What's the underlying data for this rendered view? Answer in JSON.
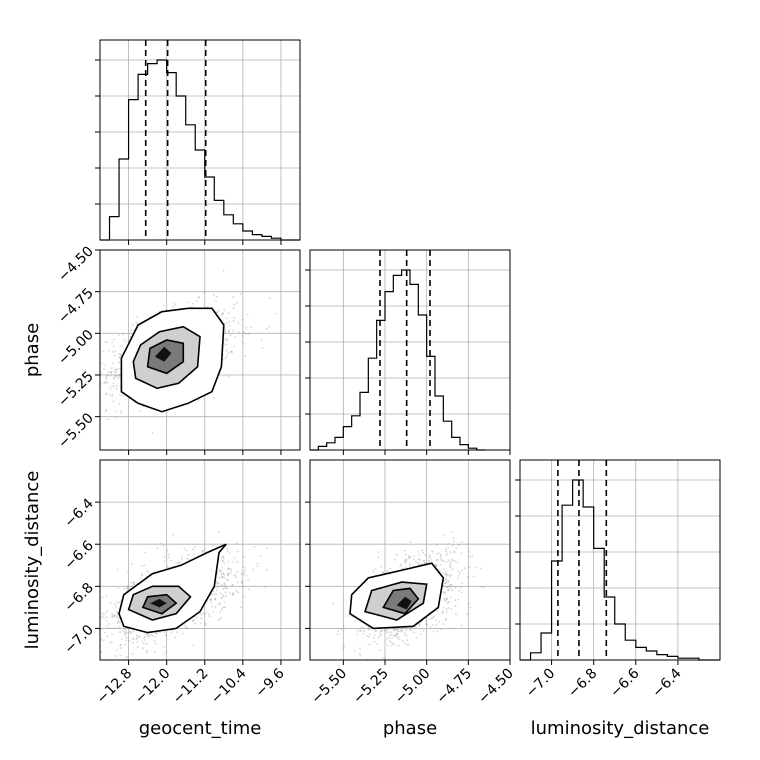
{
  "chart_data": {
    "type": "corner",
    "parameters": [
      "geocent_time",
      "phase",
      "luminosity_distance"
    ],
    "axes": {
      "geocent_time": {
        "range": [
          -13.4,
          -9.2
        ],
        "ticks": [
          -12.8,
          -12.0,
          -11.2,
          -10.4,
          -9.6
        ],
        "tick_labels": [
          "−12.8",
          "−12.0",
          "−11.2",
          "−10.4",
          "−9.6"
        ],
        "label": "geocent_time"
      },
      "phase": {
        "range": [
          -5.7,
          -4.5
        ],
        "ticks": [
          -5.5,
          -5.25,
          -5.0,
          -4.75,
          -4.5
        ],
        "tick_labels": [
          "−5.50",
          "−5.25",
          "−5.00",
          "−4.75",
          "−4.50"
        ],
        "label": "phase"
      },
      "luminosity_distance": {
        "range": [
          -7.15,
          -6.2
        ],
        "ticks": [
          -7.0,
          -6.8,
          -6.6,
          -6.4
        ],
        "tick_labels": [
          "−7.0",
          "−6.8",
          "−6.6",
          "−6.4"
        ],
        "label": "luminosity_distance"
      }
    },
    "marginals": [
      {
        "parameter": "geocent_time",
        "bin_edges": [
          -13.4,
          -13.2,
          -13.0,
          -12.8,
          -12.6,
          -12.4,
          -12.2,
          -12.0,
          -11.8,
          -11.6,
          -11.4,
          -11.2,
          -11.0,
          -10.8,
          -10.6,
          -10.4,
          -10.2,
          -10.0,
          -9.8,
          -9.6,
          -9.4,
          -9.2
        ],
        "counts": [
          0,
          0.13,
          0.45,
          0.78,
          0.92,
          0.98,
          1.0,
          0.93,
          0.8,
          0.64,
          0.5,
          0.35,
          0.22,
          0.14,
          0.09,
          0.05,
          0.03,
          0.02,
          0.01,
          0,
          0
        ],
        "quantiles": [
          -12.44,
          -11.98,
          -11.18
        ]
      },
      {
        "parameter": "phase",
        "bin_edges": [
          -5.7,
          -5.65,
          -5.6,
          -5.55,
          -5.5,
          -5.45,
          -5.4,
          -5.35,
          -5.3,
          -5.25,
          -5.2,
          -5.15,
          -5.1,
          -5.05,
          -5.0,
          -4.95,
          -4.9,
          -4.85,
          -4.8,
          -4.75,
          -4.7,
          -4.65
        ],
        "counts": [
          0,
          0.02,
          0.04,
          0.07,
          0.13,
          0.19,
          0.32,
          0.51,
          0.72,
          0.88,
          0.97,
          1.0,
          0.92,
          0.75,
          0.52,
          0.3,
          0.16,
          0.07,
          0.03,
          0.01,
          0
        ],
        "quantiles": [
          -5.28,
          -5.12,
          -4.98
        ]
      },
      {
        "parameter": "luminosity_distance",
        "bin_edges": [
          -7.15,
          -7.1,
          -7.05,
          -7.0,
          -6.95,
          -6.9,
          -6.85,
          -6.8,
          -6.75,
          -6.7,
          -6.65,
          -6.6,
          -6.55,
          -6.5,
          -6.45,
          -6.4,
          -6.35,
          -6.3,
          -6.25,
          -6.2
        ],
        "counts": [
          0,
          0.04,
          0.15,
          0.55,
          0.86,
          1.0,
          0.85,
          0.62,
          0.35,
          0.2,
          0.11,
          0.07,
          0.05,
          0.03,
          0.02,
          0.01,
          0.01,
          0,
          0
        ],
        "quantiles": [
          -6.97,
          -6.87,
          -6.74
        ]
      }
    ],
    "pairs": [
      {
        "x": "geocent_time",
        "y": "phase",
        "mean": [
          -11.98,
          -5.12
        ],
        "sd": [
          0.62,
          0.13
        ],
        "corr": 0.45,
        "contours": [
          [
            [
              -12.95,
              -5.35
            ],
            [
              -12.6,
              -5.42
            ],
            [
              -12.1,
              -5.47
            ],
            [
              -11.55,
              -5.42
            ],
            [
              -11.05,
              -5.35
            ],
            [
              -10.85,
              -5.2
            ],
            [
              -10.8,
              -4.95
            ],
            [
              -11.05,
              -4.85
            ],
            [
              -11.55,
              -4.85
            ],
            [
              -12.1,
              -4.87
            ],
            [
              -12.6,
              -4.95
            ],
            [
              -12.95,
              -5.15
            ]
          ],
          [
            [
              -12.65,
              -5.27
            ],
            [
              -12.2,
              -5.33
            ],
            [
              -11.75,
              -5.3
            ],
            [
              -11.35,
              -5.2
            ],
            [
              -11.3,
              -5.02
            ],
            [
              -11.65,
              -4.96
            ],
            [
              -12.15,
              -4.99
            ],
            [
              -12.55,
              -5.07
            ],
            [
              -12.7,
              -5.17
            ]
          ],
          [
            [
              -12.4,
              -5.2
            ],
            [
              -12.0,
              -5.24
            ],
            [
              -11.65,
              -5.17
            ],
            [
              -11.65,
              -5.06
            ],
            [
              -12.0,
              -5.04
            ],
            [
              -12.35,
              -5.09
            ]
          ],
          [
            [
              -12.25,
              -5.14
            ],
            [
              -12.05,
              -5.17
            ],
            [
              -11.9,
              -5.12
            ],
            [
              -12.05,
              -5.08
            ]
          ]
        ]
      },
      {
        "x": "geocent_time",
        "y": "luminosity_distance",
        "mean": [
          -11.98,
          -6.86
        ],
        "sd": [
          0.62,
          0.1
        ],
        "corr": 0.55,
        "contours": [
          [
            [
              -13.0,
              -6.93
            ],
            [
              -12.9,
              -6.99
            ],
            [
              -12.4,
              -7.02
            ],
            [
              -11.8,
              -7.0
            ],
            [
              -11.3,
              -6.92
            ],
            [
              -11.0,
              -6.8
            ],
            [
              -10.9,
              -6.64
            ],
            [
              -10.75,
              -6.6
            ],
            [
              -11.15,
              -6.64
            ],
            [
              -11.7,
              -6.7
            ],
            [
              -12.3,
              -6.74
            ],
            [
              -12.9,
              -6.84
            ]
          ],
          [
            [
              -12.8,
              -6.91
            ],
            [
              -12.3,
              -6.96
            ],
            [
              -11.8,
              -6.93
            ],
            [
              -11.5,
              -6.85
            ],
            [
              -11.75,
              -6.8
            ],
            [
              -12.3,
              -6.8
            ],
            [
              -12.7,
              -6.84
            ]
          ],
          [
            [
              -12.5,
              -6.9
            ],
            [
              -12.1,
              -6.93
            ],
            [
              -11.8,
              -6.88
            ],
            [
              -12.0,
              -6.84
            ],
            [
              -12.4,
              -6.85
            ]
          ],
          [
            [
              -12.35,
              -6.88
            ],
            [
              -12.15,
              -6.9
            ],
            [
              -12.0,
              -6.88
            ],
            [
              -12.15,
              -6.86
            ]
          ]
        ]
      },
      {
        "x": "phase",
        "y": "luminosity_distance",
        "mean": [
          -5.12,
          -6.86
        ],
        "sd": [
          0.13,
          0.1
        ],
        "corr": 0.45,
        "contours": [
          [
            [
              -5.46,
              -6.93
            ],
            [
              -5.32,
              -7.0
            ],
            [
              -5.08,
              -6.99
            ],
            [
              -4.93,
              -6.9
            ],
            [
              -4.9,
              -6.76
            ],
            [
              -4.97,
              -6.69
            ],
            [
              -5.13,
              -6.72
            ],
            [
              -5.35,
              -6.76
            ],
            [
              -5.45,
              -6.84
            ]
          ],
          [
            [
              -5.37,
              -6.92
            ],
            [
              -5.18,
              -6.96
            ],
            [
              -5.02,
              -6.88
            ],
            [
              -5.0,
              -6.79
            ],
            [
              -5.15,
              -6.78
            ],
            [
              -5.33,
              -6.82
            ]
          ],
          [
            [
              -5.26,
              -6.9
            ],
            [
              -5.13,
              -6.93
            ],
            [
              -5.05,
              -6.86
            ],
            [
              -5.1,
              -6.81
            ],
            [
              -5.2,
              -6.82
            ]
          ],
          [
            [
              -5.18,
              -6.89
            ],
            [
              -5.12,
              -6.91
            ],
            [
              -5.09,
              -6.87
            ],
            [
              -5.13,
              -6.85
            ]
          ]
        ]
      }
    ]
  }
}
